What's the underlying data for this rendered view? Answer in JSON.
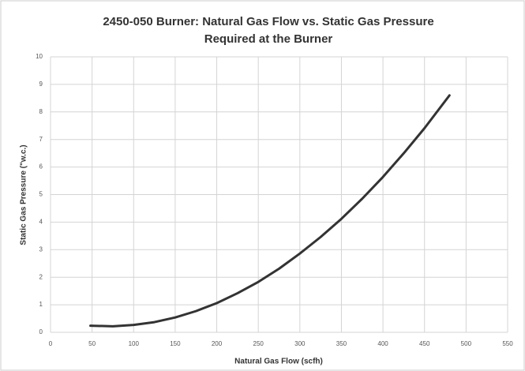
{
  "chart_data": {
    "type": "line",
    "title": [
      "2450-050 Burner: Natural Gas Flow vs. Static Gas Pressure",
      "Required at the Burner"
    ],
    "x_label": "Natural Gas Flow (scfh)",
    "y_label": "Static Gas Pressure (\"w.c.)",
    "x": [
      48,
      75,
      100,
      125,
      150,
      175,
      200,
      225,
      250,
      275,
      300,
      325,
      350,
      375,
      400,
      425,
      450,
      480
    ],
    "series": [
      {
        "color": "#333333",
        "values": [
          0.24,
          0.22,
          0.27,
          0.37,
          0.54,
          0.77,
          1.06,
          1.42,
          1.83,
          2.31,
          2.86,
          3.46,
          4.12,
          4.85,
          5.64,
          6.5,
          7.41,
          8.6
        ]
      }
    ],
    "xlim": [
      0,
      550
    ],
    "xticks": [
      0,
      50,
      100,
      150,
      200,
      250,
      300,
      350,
      400,
      450,
      500,
      550
    ],
    "ylim": [
      0,
      10
    ],
    "yticks": [
      0,
      1,
      2,
      3,
      4,
      5,
      6,
      7,
      8,
      9,
      10
    ],
    "grid": true
  }
}
